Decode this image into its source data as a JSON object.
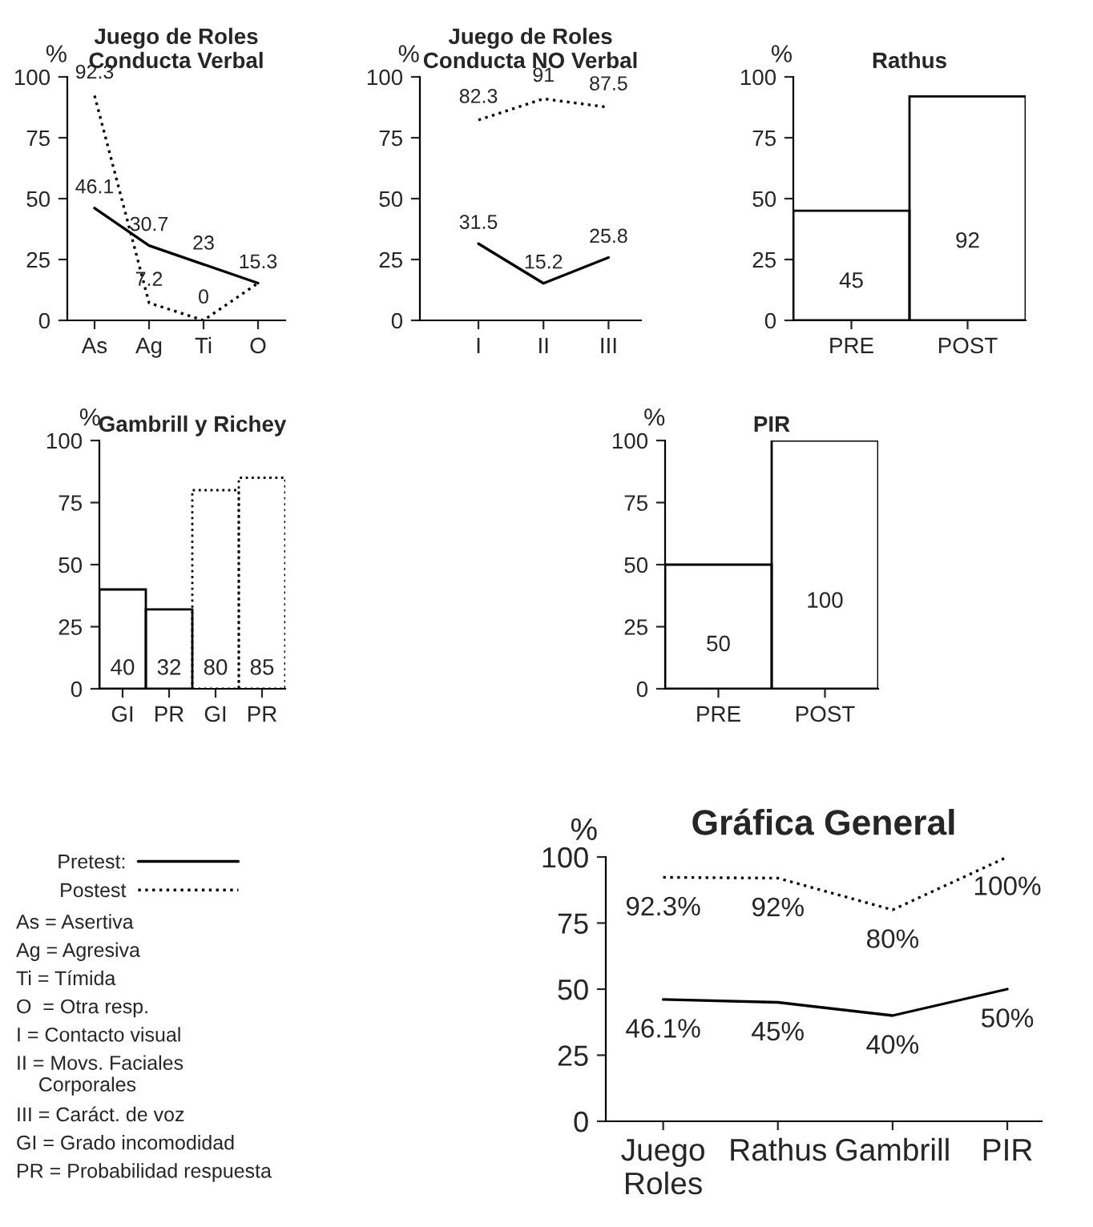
{
  "chart_data": [
    {
      "type": "line",
      "title": "Juego de Roles\nConducta Verbal",
      "ylabel": "%",
      "categories": [
        "As",
        "Ag",
        "Ti",
        "O"
      ],
      "ylim": [
        0,
        100
      ],
      "yticks": [
        0,
        25,
        50,
        75,
        100
      ],
      "series": [
        {
          "color": "#000000",
          "line_style": "solid",
          "values": [
            46.1,
            30.7,
            23,
            15.3
          ],
          "value_labels": [
            "46.1",
            "30.7",
            "23",
            "15.3"
          ]
        },
        {
          "color": "#000000",
          "line_style": "dotted",
          "values": [
            92.3,
            7.2,
            0,
            15.3
          ],
          "value_labels": [
            "92.3",
            "7.2",
            "0",
            null
          ]
        }
      ]
    },
    {
      "type": "line",
      "title": "Juego de Roles\nConducta NO Verbal",
      "ylabel": "%",
      "categories": [
        "I",
        "II",
        "III"
      ],
      "ylim": [
        0,
        100
      ],
      "yticks": [
        0,
        25,
        50,
        75,
        100
      ],
      "series": [
        {
          "color": "#000000",
          "line_style": "solid",
          "values": [
            31.5,
            15.2,
            25.8
          ],
          "value_labels": [
            "31.5",
            "15.2",
            "25.8"
          ]
        },
        {
          "color": "#000000",
          "line_style": "dotted",
          "values": [
            82.3,
            91,
            87.5
          ],
          "value_labels": [
            "82.3",
            "91",
            "87.5"
          ]
        }
      ]
    },
    {
      "type": "bar",
      "title": "Rathus",
      "ylabel": "%",
      "categories": [
        "PRE",
        "POST"
      ],
      "ylim": [
        0,
        100
      ],
      "yticks": [
        0,
        25,
        50,
        75,
        100
      ],
      "data_labels": true,
      "series": [
        {
          "color": "#000000",
          "line_style": "solid",
          "values": [
            45,
            92
          ]
        }
      ]
    },
    {
      "type": "bar",
      "title": "Gambrill y Richey",
      "ylabel": "%",
      "categories": [
        "GI",
        "PR",
        "GI",
        "PR"
      ],
      "ylim": [
        0,
        100
      ],
      "yticks": [
        0,
        25,
        50,
        75,
        100
      ],
      "data_labels": true,
      "series": [
        {
          "color": "#000000",
          "line_style": "solid",
          "values": [
            40,
            32,
            null,
            null
          ]
        },
        {
          "color": "#000000",
          "line_style": "dotted",
          "values": [
            null,
            null,
            80,
            85
          ]
        }
      ]
    },
    {
      "type": "bar",
      "title": "PIR",
      "ylabel": "%",
      "categories": [
        "PRE",
        "POST"
      ],
      "ylim": [
        0,
        100
      ],
      "yticks": [
        0,
        25,
        50,
        75,
        100
      ],
      "data_labels": true,
      "series": [
        {
          "color": "#000000",
          "line_style": "solid",
          "values": [
            50,
            100
          ]
        }
      ]
    },
    {
      "type": "line",
      "title": "Gráfica General",
      "ylabel": "%",
      "categories": [
        "Juego\nRoles",
        "Rathus",
        "Gambrill",
        "PIR"
      ],
      "ylim": [
        0,
        100
      ],
      "yticks": [
        0,
        25,
        50,
        75,
        100
      ],
      "legend": "left",
      "series": [
        {
          "name": "Pretest:",
          "color": "#000000",
          "line_style": "solid",
          "values": [
            46.1,
            45,
            40,
            50
          ],
          "value_labels": [
            "46.1%",
            "45%",
            "40%",
            "50%"
          ]
        },
        {
          "name": "Postest",
          "color": "#000000",
          "line_style": "dotted",
          "values": [
            92.3,
            92,
            80,
            100
          ],
          "value_labels": [
            "92.3%",
            "92%",
            "80%",
            "100%"
          ]
        }
      ],
      "annotations": [
        "As = Asertiva",
        "Ag = Agresiva",
        "Ti = Tímida",
        "O  = Otra resp.",
        "I = Contacto visual",
        "II = Movs. Faciales\n    Corporales",
        "III = Caráct. de voz",
        "GI = Grado incomodidad",
        "PR = Probabilidad respuesta"
      ]
    }
  ]
}
